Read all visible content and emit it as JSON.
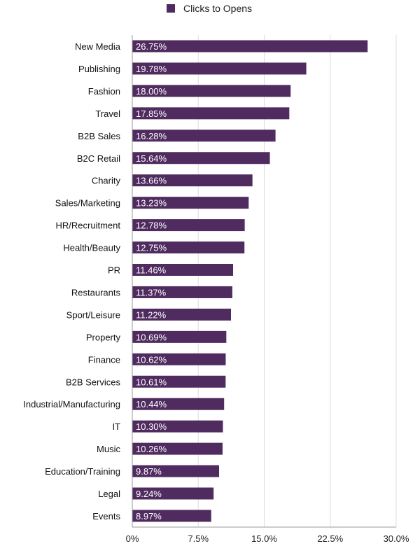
{
  "chart_data": {
    "type": "bar",
    "orientation": "horizontal",
    "legend": {
      "entries": [
        "Clicks to Opens"
      ],
      "placement": "top"
    },
    "series": [
      {
        "name": "Clicks to Opens",
        "color": "#4f2b5f",
        "values": [
          26.75,
          19.78,
          18.0,
          17.85,
          16.28,
          15.64,
          13.66,
          13.23,
          12.78,
          12.75,
          11.46,
          11.37,
          11.22,
          10.69,
          10.62,
          10.61,
          10.44,
          10.3,
          10.26,
          9.87,
          9.24,
          8.97
        ]
      }
    ],
    "categories": [
      "New Media",
      "Publishing",
      "Fashion",
      "Travel",
      "B2B Sales",
      "B2C Retail",
      "Charity",
      "Sales/Marketing",
      "HR/Recruitment",
      "Health/Beauty",
      "PR",
      "Restaurants",
      "Sport/Leisure",
      "Property",
      "Finance",
      "B2B Services",
      "Industrial/Manufacturing",
      "IT",
      "Music",
      "Education/Training",
      "Legal",
      "Events"
    ],
    "data_labels": [
      "26.75%",
      "19.78%",
      "18.00%",
      "17.85%",
      "16.28%",
      "15.64%",
      "13.66%",
      "13.23%",
      "12.78%",
      "12.75%",
      "11.46%",
      "11.37%",
      "11.22%",
      "10.69%",
      "10.62%",
      "10.61%",
      "10.44%",
      "10.30%",
      "10.26%",
      "9.87%",
      "9.24%",
      "8.97%"
    ],
    "xlim": [
      0,
      30
    ],
    "xticks": [
      0,
      7.5,
      15,
      22.5,
      30
    ],
    "xtick_labels": [
      "0%",
      "7.5%",
      "15.0%",
      "22.5%",
      "30.0%"
    ],
    "grid": "vertical",
    "xlabel": "",
    "ylabel": "",
    "title": ""
  }
}
